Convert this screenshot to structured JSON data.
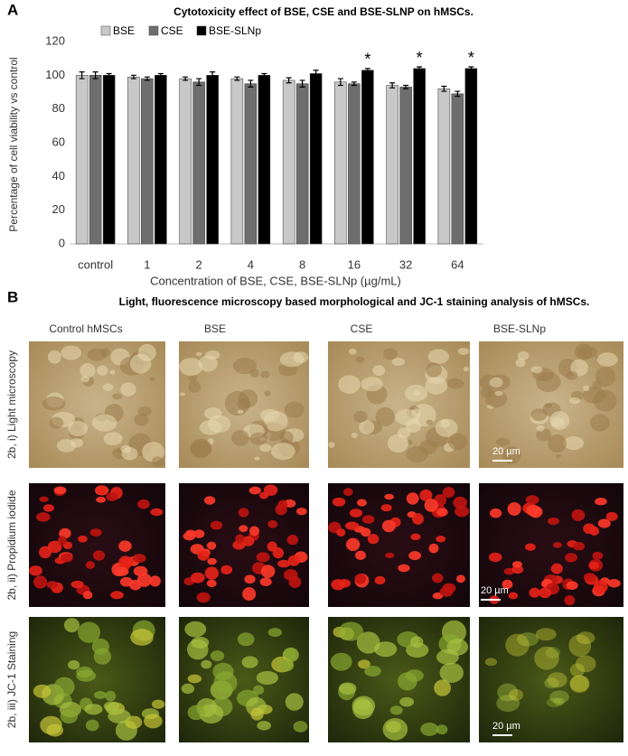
{
  "panel_a": {
    "label": "A"
  },
  "chart_data": {
    "type": "bar",
    "title": "Cytotoxicity effect of BSE, CSE and BSE-SLNP on hMSCs.",
    "x_label": "Concentration of BSE, CSE, BSE-SLNp (µg/mL)",
    "y_label": "Percentage of cell viability vs control",
    "categories": [
      "control",
      "1",
      "2",
      "4",
      "8",
      "16",
      "32",
      "64"
    ],
    "series": [
      {
        "name": "BSE",
        "color": "#c8c8c8",
        "values": [
          100,
          99,
          98,
          98,
          97,
          96,
          94,
          92
        ],
        "errors": [
          2,
          1,
          1,
          1,
          1.5,
          2,
          1.5,
          1.5
        ]
      },
      {
        "name": "CSE",
        "color": "#6e6e6e",
        "values": [
          100,
          98,
          96,
          95,
          95,
          95,
          93,
          89
        ],
        "errors": [
          2,
          1,
          2,
          2,
          2,
          1,
          1,
          1.5
        ]
      },
      {
        "name": "BSE-SLNp",
        "color": "#000000",
        "values": [
          100,
          100,
          100,
          100,
          101,
          103,
          104,
          104
        ],
        "errors": [
          1,
          1,
          2,
          1,
          2,
          1,
          1,
          1
        ]
      }
    ],
    "annotations": [
      {
        "text": "*",
        "category": "16",
        "series": "BSE-SLNp"
      },
      {
        "text": "*",
        "category": "32",
        "series": "BSE-SLNp"
      },
      {
        "text": "*",
        "category": "64",
        "series": "BSE-SLNp"
      }
    ],
    "ylim": [
      0,
      120
    ],
    "yticks": [
      0,
      20,
      40,
      60,
      80,
      100,
      120
    ],
    "grid": false,
    "legend": "top"
  },
  "panel_b": {
    "label": "B",
    "title": "Light, fluorescence microscopy based morphological and JC-1 staining analysis of hMSCs.",
    "columns": [
      "Control hMSCs",
      "BSE",
      "CSE",
      "BSE-SLNp"
    ],
    "rows": [
      {
        "label": "2b, i) Light microscopy",
        "scale_bar": "20 µm"
      },
      {
        "label": "2b, ii) Propidium iodide",
        "scale_bar": "20 µm"
      },
      {
        "label": "2b, iii) JC-1 Staining",
        "scale_bar": "20 µm"
      }
    ]
  }
}
